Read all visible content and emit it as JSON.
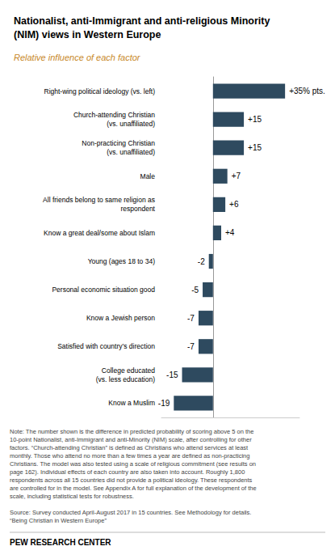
{
  "chart_data": {
    "type": "bar",
    "orientation": "horizontal",
    "title": "Nationalist, anti-Immigrant and anti-religious Minority\n(NIM) views in Western Europe",
    "subtitle": "Relative influence of each factor",
    "categories": [
      "Right-wing political ideology (vs. left)",
      "Church-attending Christian\n(vs. unaffiliated)",
      "Non-practicing Christian\n(vs. unaffiliated)",
      "Male",
      "All friends belong to same religion as\nrespondent",
      "Know a great deal/some about Islam",
      "Young (ages 18 to 34)",
      "Personal economic situation good",
      "Know a Jewish person",
      "Satisfied with country’s direction",
      "College educated\n(vs. less education)",
      "Know a Muslim"
    ],
    "values": [
      35,
      15,
      15,
      7,
      6,
      4,
      -2,
      -5,
      -7,
      -7,
      -15,
      -19
    ],
    "value_labels": [
      "+35% pts.",
      "+15",
      "+15",
      "+7",
      "+6",
      "+4",
      "-2",
      "-5",
      "-7",
      "-7",
      "-15",
      "-19"
    ],
    "data_labels": true,
    "color": "#2e4a5f",
    "xlim": [
      -25,
      42
    ],
    "grid": false,
    "tick_labels": "y",
    "annotations": [
      "Note: The number shown is the difference in predicted probability of scoring above 5 on the\n10-point Nationalist, anti-Immigrant and anti-Minority (NIM) scale, after controlling for other\nfactors. “Church-attending Christian” is defined as Christians who attend services at least\nmonthly. Those who attend no more than a few times a year are defined as non-practicing\nChristians. The model was also tested using a scale of religious commitment (see results on\npage 162). Individual effects of each country are also taken into account. Roughly 1,800\nrespondents across all 15 countries did not provide a political ideology. These respondents\nare controlled for in the model. See Appendix A for full explanation of the development of the\nscale, including statistical tests for robustness.",
      "Source: Survey conducted April-August 2017 in 15 countries. See Methodology for details.\n“Being Christian in Western Europe”",
      "PEW RESEARCH CENTER"
    ]
  }
}
